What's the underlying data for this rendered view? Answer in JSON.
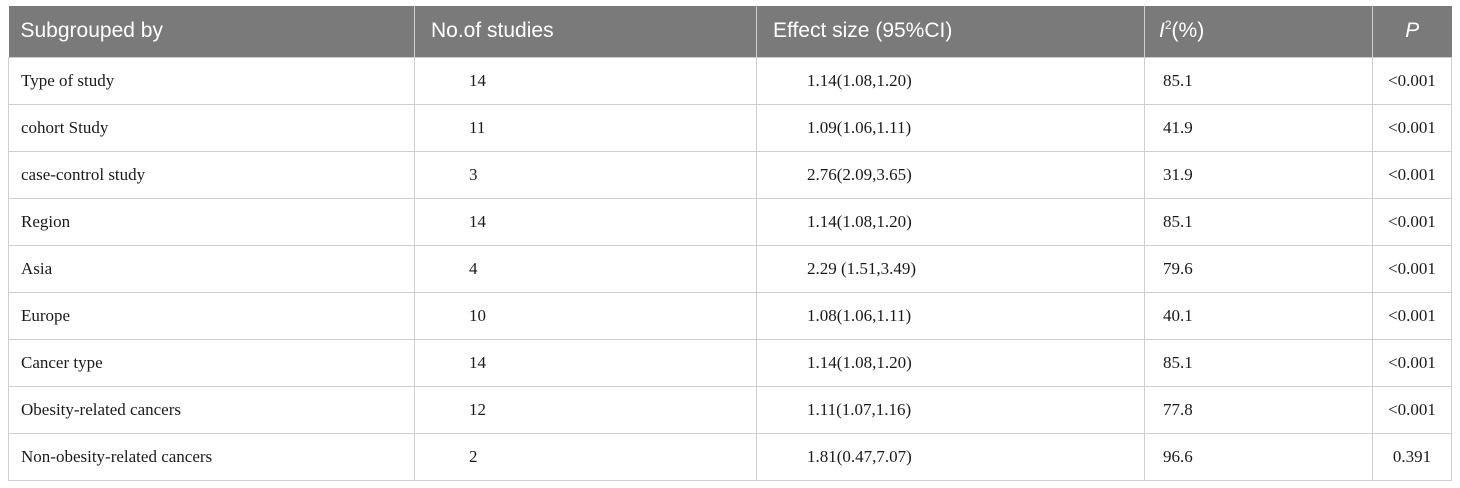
{
  "table": {
    "headers": {
      "subgroup": "Subgrouped by",
      "studies": "No.of studies",
      "effect": "Effect size (95%CI)",
      "i2_letter": "I",
      "i2_sup": "2",
      "i2_unit": "(%)",
      "p": "P"
    },
    "rows": [
      {
        "subgroup": "Type of study",
        "studies": "14",
        "effect": "1.14(1.08,1.20)",
        "i2": "85.1",
        "p": "<0.001"
      },
      {
        "subgroup": "cohort Study",
        "studies": "11",
        "effect": "1.09(1.06,1.11)",
        "i2": "41.9",
        "p": "<0.001"
      },
      {
        "subgroup": "case-control study",
        "studies": "3",
        "effect": "2.76(2.09,3.65)",
        "i2": "31.9",
        "p": "<0.001"
      },
      {
        "subgroup": "Region",
        "studies": "14",
        "effect": "1.14(1.08,1.20)",
        "i2": "85.1",
        "p": "<0.001"
      },
      {
        "subgroup": "Asia",
        "studies": "4",
        "effect": "2.29 (1.51,3.49)",
        "i2": "79.6",
        "p": "<0.001"
      },
      {
        "subgroup": "Europe",
        "studies": "10",
        "effect": "1.08(1.06,1.11)",
        "i2": "40.1",
        "p": "<0.001"
      },
      {
        "subgroup": "Cancer type",
        "studies": "14",
        "effect": "1.14(1.08,1.20)",
        "i2": "85.1",
        "p": "<0.001"
      },
      {
        "subgroup": "Obesity-related cancers",
        "studies": "12",
        "effect": "1.11(1.07,1.16)",
        "i2": "77.8",
        "p": "<0.001"
      },
      {
        "subgroup": "Non-obesity-related cancers",
        "studies": "2",
        "effect": "1.81(0.47,7.07)",
        "i2": "96.6",
        "p": "0.391"
      }
    ]
  },
  "colors": {
    "header_bg": "#7a7a7a",
    "header_text": "#ffffff",
    "grid": "#cfcfcf"
  }
}
